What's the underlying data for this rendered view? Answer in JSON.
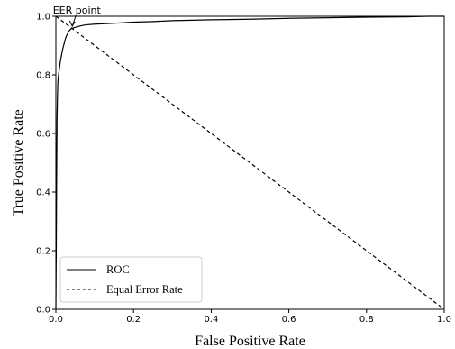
{
  "chart_data": {
    "type": "line",
    "xlabel": "False Positive Rate",
    "ylabel": "True Positive Rate",
    "xlim": [
      0.0,
      1.0
    ],
    "ylim": [
      0.0,
      1.0
    ],
    "x_ticks": [
      "0.0",
      "0.2",
      "0.4",
      "0.6",
      "0.8",
      "1.0"
    ],
    "y_ticks": [
      "0.0",
      "0.2",
      "0.4",
      "0.6",
      "0.8",
      "1.0"
    ],
    "grid": false,
    "legend_position": "lower-left",
    "series": [
      {
        "name": "ROC",
        "style": "solid",
        "color": "#000000",
        "x": [
          0.0,
          0.001,
          0.002,
          0.003,
          0.004,
          0.005,
          0.006,
          0.008,
          0.01,
          0.012,
          0.015,
          0.018,
          0.02,
          0.022,
          0.025,
          0.028,
          0.03,
          0.033,
          0.036,
          0.04,
          0.045,
          0.05,
          0.06,
          0.07,
          0.08,
          0.1,
          0.13,
          0.16,
          0.2,
          0.25,
          0.3,
          0.4,
          0.5,
          0.6,
          0.7,
          0.8,
          0.9,
          0.96,
          1.0
        ],
        "y": [
          0.0,
          0.2,
          0.45,
          0.65,
          0.72,
          0.77,
          0.79,
          0.81,
          0.83,
          0.85,
          0.87,
          0.89,
          0.9,
          0.91,
          0.925,
          0.935,
          0.94,
          0.948,
          0.953,
          0.958,
          0.96,
          0.962,
          0.966,
          0.969,
          0.971,
          0.973,
          0.975,
          0.977,
          0.98,
          0.982,
          0.985,
          0.988,
          0.99,
          0.993,
          0.995,
          0.997,
          0.998,
          1.0,
          1.0
        ]
      },
      {
        "name": "Equal Error Rate",
        "style": "dashed",
        "color": "#000000",
        "x": [
          0.0,
          1.0
        ],
        "y": [
          1.0,
          0.0
        ]
      }
    ],
    "annotations": [
      {
        "text": "EER point",
        "x": 0.04,
        "y": 0.96
      }
    ]
  }
}
